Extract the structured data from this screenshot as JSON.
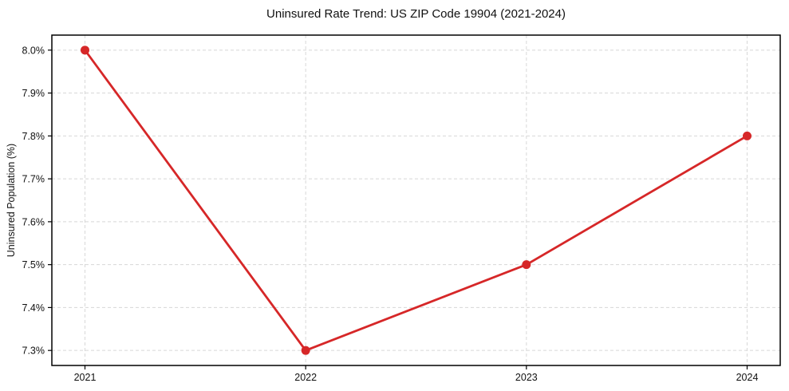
{
  "chart_data": {
    "type": "line",
    "title": "Uninsured Rate Trend: US ZIP Code 19904 (2021-2024)",
    "xlabel": "",
    "ylabel": "Uninsured Population (%)",
    "x": [
      2021,
      2022,
      2023,
      2024
    ],
    "series": [
      {
        "name": "Uninsured Rate",
        "values": [
          8.0,
          7.3,
          7.5,
          7.8
        ],
        "color": "#d62728"
      }
    ],
    "x_tick_labels": [
      "2021",
      "2022",
      "2023",
      "2024"
    ],
    "y_ticks": [
      7.3,
      7.4,
      7.5,
      7.6,
      7.7,
      7.8,
      7.9,
      8.0
    ],
    "y_tick_labels": [
      "7.3%",
      "7.4%",
      "7.5%",
      "7.6%",
      "7.7%",
      "7.8%",
      "7.9%",
      "8.0%"
    ],
    "xlim": [
      2020.85,
      2024.15
    ],
    "ylim": [
      7.265,
      8.035
    ],
    "grid": true,
    "legend_position": "none",
    "colors": {
      "line": "#d62728",
      "marker": "#d62728",
      "grid": "#d8d8d8",
      "spine": "#000000",
      "tick_text": "#111111",
      "background": "#ffffff"
    }
  }
}
